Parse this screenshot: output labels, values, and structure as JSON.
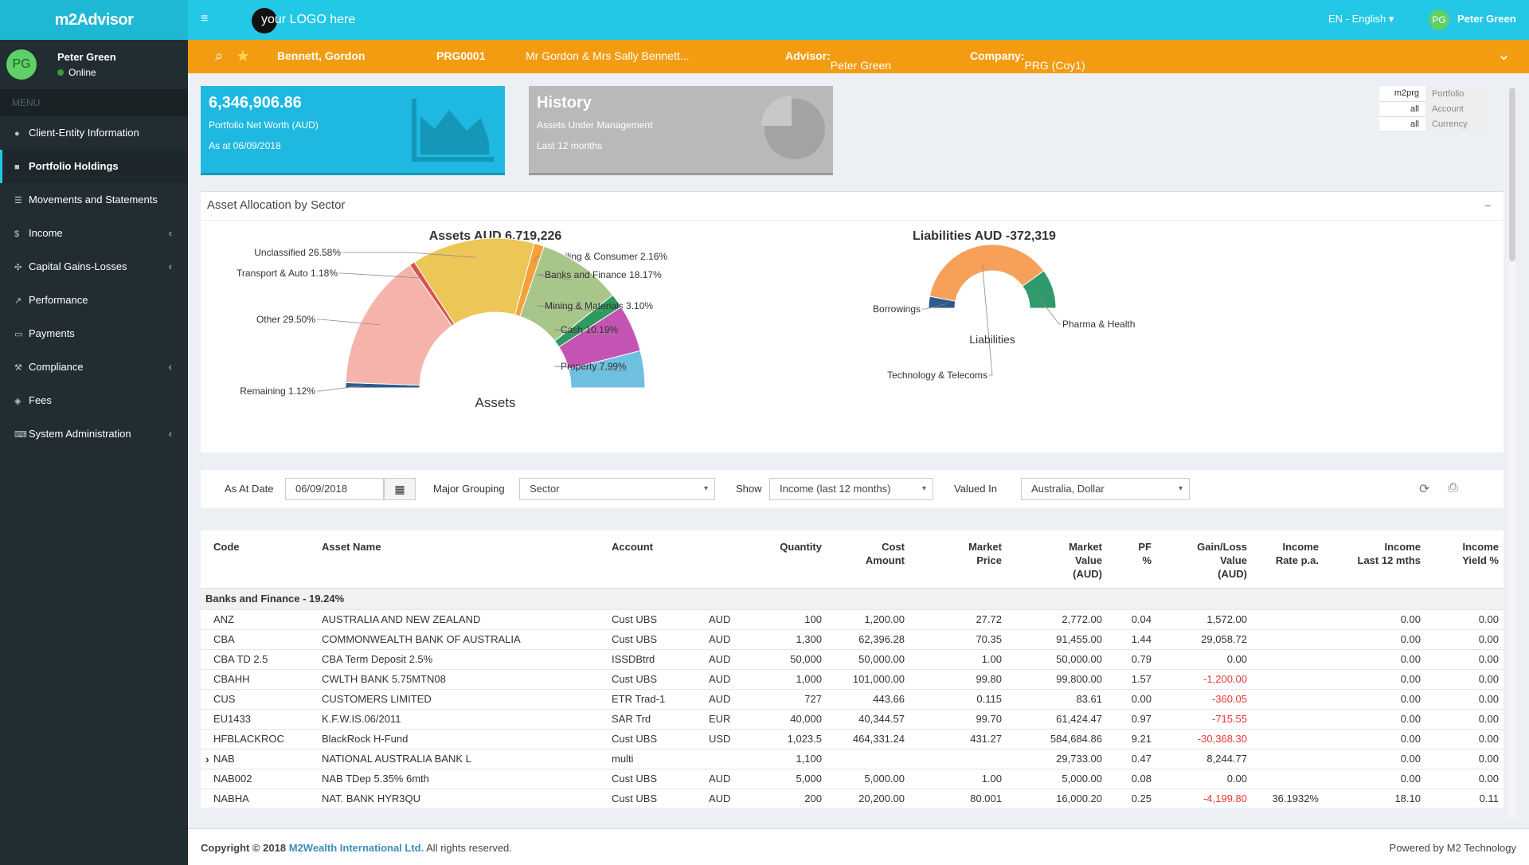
{
  "app": {
    "brand": "m2Advisor",
    "logo_text": "your LOGO here",
    "language": "EN - English",
    "language_caret": "▾",
    "hamburger": "≡"
  },
  "user": {
    "initials": "PG",
    "name": "Peter Green",
    "status": "Online"
  },
  "sidebar": {
    "menu_header": "MENU",
    "items": [
      {
        "label": "Client-Entity Information",
        "icon": "user-icon",
        "glyph": "●",
        "has_children": false,
        "active": false
      },
      {
        "label": "Portfolio Holdings",
        "icon": "briefcase-icon",
        "glyph": "■",
        "has_children": false,
        "active": true
      },
      {
        "label": "Movements and Statements",
        "icon": "list-icon",
        "glyph": "☰",
        "has_children": false,
        "active": false
      },
      {
        "label": "Income",
        "icon": "dollar-icon",
        "glyph": "$",
        "has_children": true,
        "active": false
      },
      {
        "label": "Capital Gains-Losses",
        "icon": "crosshair-icon",
        "glyph": "✣",
        "has_children": true,
        "active": false
      },
      {
        "label": "Performance",
        "icon": "line-chart-icon",
        "glyph": "↗",
        "has_children": false,
        "active": false
      },
      {
        "label": "Payments",
        "icon": "credit-card-icon",
        "glyph": "▭",
        "has_children": false,
        "active": false
      },
      {
        "label": "Compliance",
        "icon": "gavel-icon",
        "glyph": "⚒",
        "has_children": true,
        "active": false
      },
      {
        "label": "Fees",
        "icon": "tag-icon",
        "glyph": "◈",
        "has_children": false,
        "active": false
      },
      {
        "label": "System Administration",
        "icon": "keyboard-icon",
        "glyph": "⌨",
        "has_children": true,
        "active": false
      }
    ],
    "chevron": "‹"
  },
  "context_bar": {
    "client_name": "Bennett, Gordon",
    "client_code": "PRG0001",
    "client_desc": "Mr Gordon & Mrs Sally Bennett...",
    "advisor_label": "Advisor:",
    "advisor": "Peter Green",
    "company_label": "Company:",
    "company": "PRG (Coy1)",
    "expand": "⌄"
  },
  "net_worth_box": {
    "value": "6,346,906.86",
    "label": "Portfolio Net Worth  (AUD)",
    "date": "As at 06/09/2018"
  },
  "history_box": {
    "title": "History",
    "label": "Assets Under Management",
    "period": "Last 12 months"
  },
  "filters": [
    {
      "value": "m2prg",
      "label": "Portfolio"
    },
    {
      "value": "all",
      "label": "Account"
    },
    {
      "value": "all",
      "label": "Currency"
    }
  ],
  "allocation": {
    "title": "Asset Allocation by Sector",
    "collapse": "−",
    "assets_title": "Assets AUD 6,719,226",
    "assets_center": "Assets",
    "liabilities_title": "Liabilities AUD -372,319",
    "liabilities_center": "Liabilities"
  },
  "chart_data": [
    {
      "type": "pie",
      "title": "Assets AUD 6,719,226",
      "center_label": "Assets",
      "categories": [
        "Remaining",
        "Other",
        "Transport & Auto",
        "Unclassified",
        "Retailing & Consumer",
        "Banks and Finance",
        "Mining & Materials",
        "Cash",
        "Property"
      ],
      "labels": [
        "Remaining 1.12%",
        "Other 29.50%",
        "Transport & Auto 1.18%",
        "Unclassified 26.58%",
        "Retailing & Consumer 2.16%",
        "Banks and Finance 18.17%",
        "Mining & Materials 3.10%",
        "Cash 10.19%",
        "Property 7.99%"
      ],
      "values": [
        1.12,
        29.5,
        1.18,
        26.58,
        2.16,
        18.17,
        3.1,
        10.19,
        7.99
      ],
      "colors": [
        "#2e5b8a",
        "#f6b3ab",
        "#d9534f",
        "#ecc656",
        "#f4a13a",
        "#a8c68a",
        "#2f9a5f",
        "#c454b4",
        "#6dc0e0"
      ]
    },
    {
      "type": "pie",
      "title": "Liabilities AUD -372,319",
      "center_label": "Liabilities",
      "categories": [
        "Borrowings",
        "Technology & Telecoms",
        "Pharma & Health"
      ],
      "values": [
        6,
        74,
        20
      ],
      "colors": [
        "#2e5b8a",
        "#f7a05a",
        "#2f9a6a"
      ]
    }
  ],
  "filter_bar": {
    "as_at_label": "As At Date",
    "as_at_value": "06/09/2018",
    "calendar_glyph": "▦",
    "grouping_label": "Major Grouping",
    "grouping_value": "Sector",
    "show_label": "Show",
    "show_value": "Income (last 12 months)",
    "valued_label": "Valued In",
    "valued_value": "Australia, Dollar",
    "caret": "▾",
    "refresh_glyph": "⟳",
    "print_glyph": "⎙"
  },
  "table": {
    "headers": [
      "Code",
      "Asset Name",
      "Account",
      "",
      "Quantity",
      "Cost\nAmount",
      "Market\nPrice",
      "Market\nValue\n(AUD)",
      "PF\n%",
      "Gain/Loss\nValue\n(AUD)",
      "Income\nRate p.a.",
      "Income\nLast 12 mths",
      "Income\nYield %"
    ],
    "group": "Banks and Finance - 19.24%",
    "rows": [
      {
        "expander": "",
        "code": "ANZ",
        "name": "AUSTRALIA AND NEW ZEALAND",
        "account": "Cust UBS",
        "ccy": "AUD",
        "qty": "100",
        "cost": "1,200.00",
        "price": "27.72",
        "mv": "2,772.00",
        "pf": "0.04",
        "gl": "1,572.00",
        "neg": false,
        "rate": "",
        "inc": "0.00",
        "yield": "0.00"
      },
      {
        "expander": "",
        "code": "CBA",
        "name": "COMMONWEALTH BANK OF AUSTRALIA",
        "account": "Cust UBS",
        "ccy": "AUD",
        "qty": "1,300",
        "cost": "62,396.28",
        "price": "70.35",
        "mv": "91,455.00",
        "pf": "1.44",
        "gl": "29,058.72",
        "neg": false,
        "rate": "",
        "inc": "0.00",
        "yield": "0.00"
      },
      {
        "expander": "",
        "code": "CBA TD 2.5",
        "name": "CBA Term Deposit 2.5%",
        "account": "ISSDBtrd",
        "ccy": "AUD",
        "qty": "50,000",
        "cost": "50,000.00",
        "price": "1.00",
        "mv": "50,000.00",
        "pf": "0.79",
        "gl": "0.00",
        "neg": false,
        "rate": "",
        "inc": "0.00",
        "yield": "0.00"
      },
      {
        "expander": "",
        "code": "CBAHH",
        "name": "CWLTH BANK 5.75MTN08",
        "account": "Cust UBS",
        "ccy": "AUD",
        "qty": "1,000",
        "cost": "101,000.00",
        "price": "99.80",
        "mv": "99,800.00",
        "pf": "1.57",
        "gl": "-1,200.00",
        "neg": true,
        "rate": "",
        "inc": "0.00",
        "yield": "0.00"
      },
      {
        "expander": "",
        "code": "CUS",
        "name": "CUSTOMERS LIMITED",
        "account": "ETR Trad-1",
        "ccy": "AUD",
        "qty": "727",
        "cost": "443.66",
        "price": "0.115",
        "mv": "83.61",
        "pf": "0.00",
        "gl": "-360.05",
        "neg": true,
        "rate": "",
        "inc": "0.00",
        "yield": "0.00"
      },
      {
        "expander": "",
        "code": "EU1433",
        "name": "K.F.W.IS.06/2011",
        "account": "SAR Trd",
        "ccy": "EUR",
        "qty": "40,000",
        "cost": "40,344.57",
        "price": "99.70",
        "mv": "61,424.47",
        "pf": "0.97",
        "gl": "-715.55",
        "neg": true,
        "rate": "",
        "inc": "0.00",
        "yield": "0.00"
      },
      {
        "expander": "",
        "code": "HFBLACKROC",
        "name": "BlackRock H-Fund",
        "account": "Cust UBS",
        "ccy": "USD",
        "qty": "1,023.5",
        "cost": "464,331.24",
        "price": "431.27",
        "mv": "584,684.86",
        "pf": "9.21",
        "gl": "-30,368.30",
        "neg": true,
        "rate": "",
        "inc": "0.00",
        "yield": "0.00"
      },
      {
        "expander": "›",
        "code": "NAB",
        "name": "NATIONAL AUSTRALIA BANK L",
        "account": "multi",
        "ccy": "",
        "qty": "1,100",
        "cost": "",
        "price": "",
        "mv": "29,733.00",
        "pf": "0.47",
        "gl": "8,244.77",
        "neg": false,
        "rate": "",
        "inc": "0.00",
        "yield": "0.00"
      },
      {
        "expander": "",
        "code": "NAB002",
        "name": "NAB TDep 5.35% 6mth",
        "account": "Cust UBS",
        "ccy": "AUD",
        "qty": "5,000",
        "cost": "5,000.00",
        "price": "1.00",
        "mv": "5,000.00",
        "pf": "0.08",
        "gl": "0.00",
        "neg": false,
        "rate": "",
        "inc": "0.00",
        "yield": "0.00"
      },
      {
        "expander": "",
        "code": "NABHA",
        "name": "NAT. BANK HYR3QU",
        "account": "Cust UBS",
        "ccy": "AUD",
        "qty": "200",
        "cost": "20,200.00",
        "price": "80.001",
        "mv": "16,000.20",
        "pf": "0.25",
        "gl": "-4,199.80",
        "neg": true,
        "rate": "36.1932%",
        "inc": "18.10",
        "yield": "0.11"
      }
    ]
  },
  "footer": {
    "copyright": "Copyright © 2018",
    "company": "M2Wealth International Ltd.",
    "rights": "All rights reserved.",
    "powered": "Powered by M2 Technology"
  }
}
